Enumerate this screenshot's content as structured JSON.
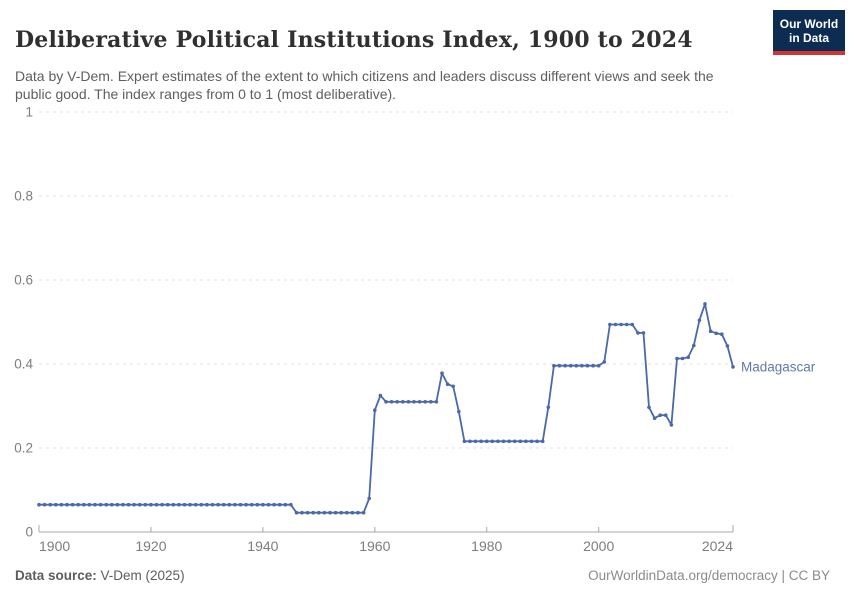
{
  "header": {
    "title": "Deliberative Political Institutions Index, 1900 to 2024",
    "subtitle": "Data by V-Dem. Expert estimates of the extent to which citizens and leaders discuss different views and seek the public good. The index ranges from 0 to 1 (most deliberative).",
    "logo_line1": "Our World",
    "logo_line2": "in Data"
  },
  "footer": {
    "source_label": "Data source:",
    "source_value": " V-Dem (2025)",
    "credit": "OurWorldinData.org/democracy | CC BY"
  },
  "colors": {
    "line": "#4a69a8",
    "entity_label": "#5d7cab",
    "gridline": "#e2e2e2",
    "axis": "#a8a8a8",
    "tick_label": "#7d7d7d",
    "logo_bg": "#0c2c52",
    "logo_accent": "#d13434"
  },
  "chart_data": {
    "type": "line",
    "title": "Deliberative Political Institutions Index, 1900 to 2024",
    "xlabel": "",
    "ylabel": "",
    "xlim": [
      1900,
      2024
    ],
    "ylim": [
      0,
      1
    ],
    "xticks": [
      1900,
      1920,
      1940,
      1960,
      1980,
      2000,
      2024
    ],
    "yticks": [
      0,
      0.2,
      0.4,
      0.6,
      0.8,
      1
    ],
    "grid": "horizontal-dashed",
    "legend_position": "end-of-line-label",
    "series": [
      {
        "name": "Madagascar",
        "points": [
          [
            1900,
            0.065
          ],
          [
            1901,
            0.065
          ],
          [
            1902,
            0.065
          ],
          [
            1903,
            0.065
          ],
          [
            1904,
            0.065
          ],
          [
            1905,
            0.065
          ],
          [
            1906,
            0.065
          ],
          [
            1907,
            0.065
          ],
          [
            1908,
            0.065
          ],
          [
            1909,
            0.065
          ],
          [
            1910,
            0.065
          ],
          [
            1911,
            0.065
          ],
          [
            1912,
            0.065
          ],
          [
            1913,
            0.065
          ],
          [
            1914,
            0.065
          ],
          [
            1915,
            0.065
          ],
          [
            1916,
            0.065
          ],
          [
            1917,
            0.065
          ],
          [
            1918,
            0.065
          ],
          [
            1919,
            0.065
          ],
          [
            1920,
            0.065
          ],
          [
            1921,
            0.065
          ],
          [
            1922,
            0.065
          ],
          [
            1923,
            0.065
          ],
          [
            1924,
            0.065
          ],
          [
            1925,
            0.065
          ],
          [
            1926,
            0.065
          ],
          [
            1927,
            0.065
          ],
          [
            1928,
            0.065
          ],
          [
            1929,
            0.065
          ],
          [
            1930,
            0.065
          ],
          [
            1931,
            0.065
          ],
          [
            1932,
            0.065
          ],
          [
            1933,
            0.065
          ],
          [
            1934,
            0.065
          ],
          [
            1935,
            0.065
          ],
          [
            1936,
            0.065
          ],
          [
            1937,
            0.065
          ],
          [
            1938,
            0.065
          ],
          [
            1939,
            0.065
          ],
          [
            1940,
            0.065
          ],
          [
            1941,
            0.065
          ],
          [
            1942,
            0.065
          ],
          [
            1943,
            0.065
          ],
          [
            1944,
            0.065
          ],
          [
            1945,
            0.065
          ],
          [
            1946,
            0.046
          ],
          [
            1947,
            0.046
          ],
          [
            1948,
            0.046
          ],
          [
            1949,
            0.046
          ],
          [
            1950,
            0.046
          ],
          [
            1951,
            0.046
          ],
          [
            1952,
            0.046
          ],
          [
            1953,
            0.046
          ],
          [
            1954,
            0.046
          ],
          [
            1955,
            0.046
          ],
          [
            1956,
            0.046
          ],
          [
            1957,
            0.046
          ],
          [
            1958,
            0.046
          ],
          [
            1959,
            0.08
          ],
          [
            1960,
            0.29
          ],
          [
            1961,
            0.325
          ],
          [
            1962,
            0.31
          ],
          [
            1963,
            0.31
          ],
          [
            1964,
            0.31
          ],
          [
            1965,
            0.31
          ],
          [
            1966,
            0.31
          ],
          [
            1967,
            0.31
          ],
          [
            1968,
            0.31
          ],
          [
            1969,
            0.31
          ],
          [
            1970,
            0.31
          ],
          [
            1971,
            0.31
          ],
          [
            1972,
            0.378
          ],
          [
            1973,
            0.352
          ],
          [
            1974,
            0.347
          ],
          [
            1975,
            0.287
          ],
          [
            1976,
            0.216
          ],
          [
            1977,
            0.216
          ],
          [
            1978,
            0.216
          ],
          [
            1979,
            0.216
          ],
          [
            1980,
            0.216
          ],
          [
            1981,
            0.216
          ],
          [
            1982,
            0.216
          ],
          [
            1983,
            0.216
          ],
          [
            1984,
            0.216
          ],
          [
            1985,
            0.216
          ],
          [
            1986,
            0.216
          ],
          [
            1987,
            0.216
          ],
          [
            1988,
            0.216
          ],
          [
            1989,
            0.216
          ],
          [
            1990,
            0.216
          ],
          [
            1991,
            0.297
          ],
          [
            1992,
            0.396
          ],
          [
            1993,
            0.396
          ],
          [
            1994,
            0.396
          ],
          [
            1995,
            0.396
          ],
          [
            1996,
            0.396
          ],
          [
            1997,
            0.396
          ],
          [
            1998,
            0.396
          ],
          [
            1999,
            0.396
          ],
          [
            2000,
            0.396
          ],
          [
            2001,
            0.405
          ],
          [
            2002,
            0.494
          ],
          [
            2003,
            0.494
          ],
          [
            2004,
            0.494
          ],
          [
            2005,
            0.494
          ],
          [
            2006,
            0.494
          ],
          [
            2007,
            0.474
          ],
          [
            2008,
            0.474
          ],
          [
            2009,
            0.297
          ],
          [
            2010,
            0.271
          ],
          [
            2011,
            0.278
          ],
          [
            2012,
            0.278
          ],
          [
            2013,
            0.255
          ],
          [
            2014,
            0.413
          ],
          [
            2015,
            0.413
          ],
          [
            2016,
            0.416
          ],
          [
            2017,
            0.444
          ],
          [
            2018,
            0.504
          ],
          [
            2019,
            0.543
          ],
          [
            2020,
            0.478
          ],
          [
            2021,
            0.473
          ],
          [
            2022,
            0.471
          ],
          [
            2023,
            0.443
          ],
          [
            2024,
            0.393
          ]
        ]
      }
    ]
  }
}
